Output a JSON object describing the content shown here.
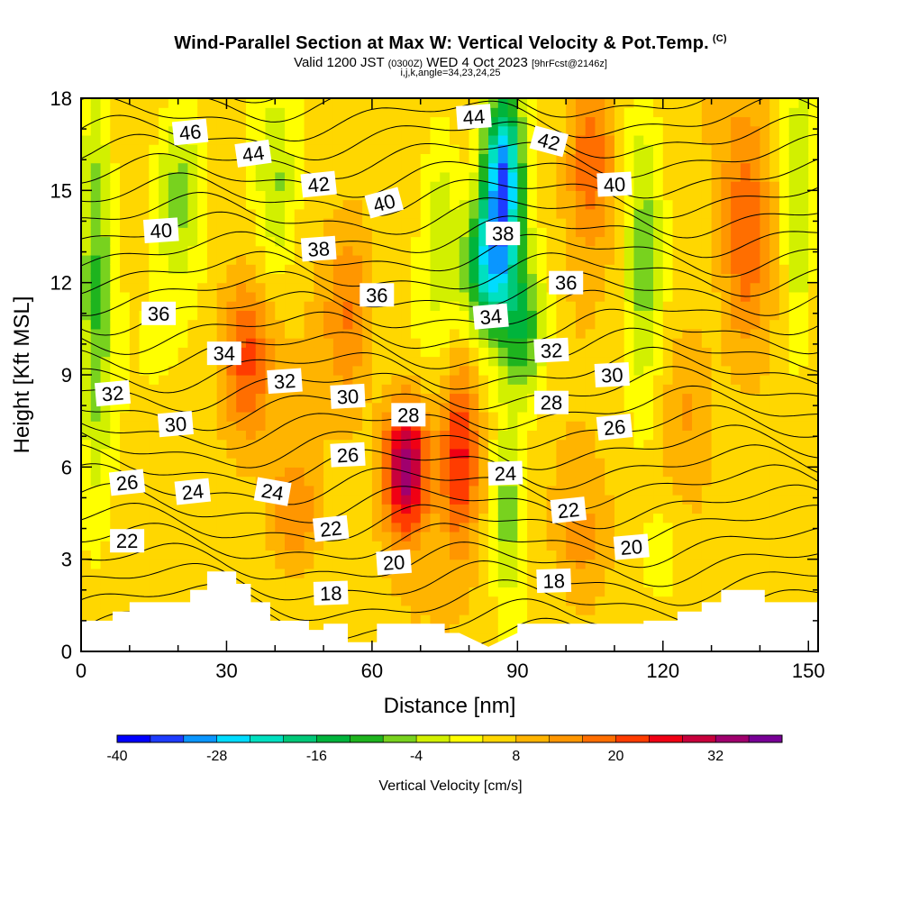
{
  "header": {
    "title": "Wind-Parallel Section at Max W: Vertical Velocity & Pot.Temp.",
    "title_tag": "(C)",
    "valid_prefix": "Valid 1200 JST",
    "valid_utc": "(0300Z)",
    "valid_date": "WED 4 Oct 2023",
    "forecast": "[9hrFcst@2146z]",
    "indices": "i,j,k,angle=34,23,24,25"
  },
  "colors": {
    "background": "#ffffff",
    "terrain": "#ffffff",
    "contour_line": "#000000"
  },
  "chart_data": {
    "type": "heatmap",
    "xlabel": "Distance [nm]",
    "ylabel": "Height [Kft MSL]",
    "xlim": [
      0,
      152
    ],
    "ylim": [
      0,
      18
    ],
    "x_ticks": [
      "0",
      "30",
      "60",
      "90",
      "120",
      "150"
    ],
    "x_tick_values": [
      0,
      30,
      60,
      90,
      120,
      150
    ],
    "y_ticks": [
      "0",
      "3",
      "6",
      "9",
      "12",
      "15",
      "18"
    ],
    "y_tick_values": [
      0,
      3,
      6,
      9,
      12,
      15,
      18
    ],
    "grid": false,
    "colorbar": {
      "label": "Vertical Velocity [cm/s]",
      "min": -40,
      "max": 40,
      "step": 4,
      "tick_labels": [
        "-40",
        "-28",
        "-16",
        "-4",
        "8",
        "20",
        "32"
      ],
      "tick_values": [
        -40,
        -28,
        -16,
        -4,
        8,
        20,
        32
      ],
      "colors": [
        "#0000ff",
        "#1e3cff",
        "#0a96ff",
        "#00dcff",
        "#00e0c0",
        "#00c878",
        "#00b43c",
        "#1eb41e",
        "#78d21e",
        "#d2f000",
        "#ffff00",
        "#ffd700",
        "#ffb400",
        "#ff9600",
        "#ff6e00",
        "#ff3c00",
        "#f00014",
        "#c8003c",
        "#a0006e",
        "#780096"
      ]
    },
    "velocity_features": [
      {
        "x": 87,
        "y": 15.5,
        "sx": 4,
        "sy": 2.8,
        "w": -36
      },
      {
        "x": 84,
        "y": 12.5,
        "sx": 5,
        "sy": 2.2,
        "w": -26
      },
      {
        "x": 91,
        "y": 10.5,
        "sx": 5,
        "sy": 2.5,
        "w": -18
      },
      {
        "x": 88,
        "y": 4.5,
        "sx": 3,
        "sy": 3,
        "w": -12
      },
      {
        "x": 3,
        "y": 12,
        "sx": 3.5,
        "sy": 7,
        "w": -14
      },
      {
        "x": 20,
        "y": 15,
        "sx": 5,
        "sy": 3,
        "w": -12
      },
      {
        "x": 40,
        "y": 15,
        "sx": 4,
        "sy": 3,
        "w": -10
      },
      {
        "x": 116,
        "y": 13,
        "sx": 4,
        "sy": 5,
        "w": -12
      },
      {
        "x": 148,
        "y": 14,
        "sx": 3,
        "sy": 5,
        "w": -10
      },
      {
        "x": 74,
        "y": 14,
        "sx": 4,
        "sy": 4,
        "w": -8
      },
      {
        "x": 120,
        "y": 3,
        "sx": 4,
        "sy": 1.5,
        "w": -6
      },
      {
        "x": 67,
        "y": 6,
        "sx": 4.5,
        "sy": 2.2,
        "w": 30
      },
      {
        "x": 78,
        "y": 6.5,
        "sx": 4,
        "sy": 3,
        "w": 20
      },
      {
        "x": 34,
        "y": 9.5,
        "sx": 5,
        "sy": 2.5,
        "w": 14
      },
      {
        "x": 105,
        "y": 16,
        "sx": 5,
        "sy": 3,
        "w": 14
      },
      {
        "x": 137,
        "y": 13.5,
        "sx": 5,
        "sy": 4,
        "w": 14
      },
      {
        "x": 44,
        "y": 4.5,
        "sx": 5,
        "sy": 2,
        "w": 10
      },
      {
        "x": 55,
        "y": 11,
        "sx": 5,
        "sy": 3,
        "w": 10
      },
      {
        "x": 103,
        "y": 3.5,
        "sx": 6,
        "sy": 2.5,
        "w": 8
      },
      {
        "x": 125,
        "y": 8,
        "sx": 6,
        "sy": 3,
        "w": 8
      }
    ],
    "potential_temperature": {
      "contour_interval": 1,
      "labels": [
        {
          "text": "46",
          "x": 22.5,
          "y": 16.9,
          "angle": -6
        },
        {
          "text": "44",
          "x": 35.5,
          "y": 16.2,
          "angle": -8
        },
        {
          "text": "42",
          "x": 49.0,
          "y": 15.2,
          "angle": -6
        },
        {
          "text": "40",
          "x": 62.5,
          "y": 14.6,
          "angle": -15
        },
        {
          "text": "44",
          "x": 81.0,
          "y": 17.4,
          "angle": -4
        },
        {
          "text": "42",
          "x": 96.5,
          "y": 16.6,
          "angle": 15
        },
        {
          "text": "40",
          "x": 110.0,
          "y": 15.2,
          "angle": -3
        },
        {
          "text": "40",
          "x": 16.5,
          "y": 13.7,
          "angle": -4
        },
        {
          "text": "38",
          "x": 49.0,
          "y": 13.1,
          "angle": -4
        },
        {
          "text": "38",
          "x": 87.0,
          "y": 13.6,
          "angle": 0
        },
        {
          "text": "36",
          "x": 16.0,
          "y": 11.0,
          "angle": 0
        },
        {
          "text": "36",
          "x": 61.0,
          "y": 11.6,
          "angle": 0
        },
        {
          "text": "36",
          "x": 100.0,
          "y": 12.0,
          "angle": 0
        },
        {
          "text": "34",
          "x": 29.5,
          "y": 9.7,
          "angle": 0
        },
        {
          "text": "34",
          "x": 84.5,
          "y": 10.9,
          "angle": -5
        },
        {
          "text": "32",
          "x": 6.5,
          "y": 8.4,
          "angle": -5
        },
        {
          "text": "32",
          "x": 42.0,
          "y": 8.8,
          "angle": -4
        },
        {
          "text": "32",
          "x": 97.0,
          "y": 9.8,
          "angle": -3
        },
        {
          "text": "30",
          "x": 19.5,
          "y": 7.4,
          "angle": -5
        },
        {
          "text": "30",
          "x": 55.0,
          "y": 8.3,
          "angle": -3
        },
        {
          "text": "30",
          "x": 109.5,
          "y": 9.0,
          "angle": -3
        },
        {
          "text": "28",
          "x": 67.5,
          "y": 7.7,
          "angle": 0
        },
        {
          "text": "28",
          "x": 97.0,
          "y": 8.1,
          "angle": 0
        },
        {
          "text": "26",
          "x": 9.5,
          "y": 5.5,
          "angle": -6
        },
        {
          "text": "26",
          "x": 55.0,
          "y": 6.4,
          "angle": -3
        },
        {
          "text": "26",
          "x": 110.0,
          "y": 7.3,
          "angle": -6
        },
        {
          "text": "24",
          "x": 23.0,
          "y": 5.2,
          "angle": -6
        },
        {
          "text": "24",
          "x": 39.5,
          "y": 5.2,
          "angle": 10
        },
        {
          "text": "24",
          "x": 87.5,
          "y": 5.8,
          "angle": -2
        },
        {
          "text": "22",
          "x": 9.5,
          "y": 3.6,
          "angle": 0
        },
        {
          "text": "22",
          "x": 51.5,
          "y": 4.0,
          "angle": -6
        },
        {
          "text": "22",
          "x": 100.5,
          "y": 4.6,
          "angle": -6
        },
        {
          "text": "20",
          "x": 64.5,
          "y": 2.9,
          "angle": -4
        },
        {
          "text": "20",
          "x": 113.5,
          "y": 3.4,
          "angle": -5
        },
        {
          "text": "18",
          "x": 51.5,
          "y": 1.9,
          "angle": -2
        },
        {
          "text": "18",
          "x": 97.5,
          "y": 2.3,
          "angle": -2
        }
      ]
    },
    "terrain_height": [
      {
        "x": 0,
        "h": 1.0
      },
      {
        "x": 6.5,
        "h": 1.0
      },
      {
        "x": 6.5,
        "h": 1.3
      },
      {
        "x": 10,
        "h": 1.3
      },
      {
        "x": 10,
        "h": 1.6
      },
      {
        "x": 22.5,
        "h": 1.6
      },
      {
        "x": 22.5,
        "h": 2.0
      },
      {
        "x": 26,
        "h": 2.0
      },
      {
        "x": 26,
        "h": 2.6
      },
      {
        "x": 32,
        "h": 2.6
      },
      {
        "x": 32,
        "h": 2.2
      },
      {
        "x": 35,
        "h": 2.2
      },
      {
        "x": 35,
        "h": 1.6
      },
      {
        "x": 39,
        "h": 1.6
      },
      {
        "x": 39,
        "h": 1.0
      },
      {
        "x": 47,
        "h": 1.0
      },
      {
        "x": 47,
        "h": 0.7
      },
      {
        "x": 50,
        "h": 0.7
      },
      {
        "x": 50,
        "h": 0.9
      },
      {
        "x": 55,
        "h": 0.9
      },
      {
        "x": 55,
        "h": 0.3
      },
      {
        "x": 61,
        "h": 0.3
      },
      {
        "x": 61,
        "h": 0.9
      },
      {
        "x": 75,
        "h": 0.9
      },
      {
        "x": 75,
        "h": 0.6
      },
      {
        "x": 78,
        "h": 0.6
      },
      {
        "x": 84,
        "h": 0.15
      },
      {
        "x": 90,
        "h": 0.6
      },
      {
        "x": 90,
        "h": 0.9
      },
      {
        "x": 116,
        "h": 0.9
      },
      {
        "x": 116,
        "h": 1.0
      },
      {
        "x": 123,
        "h": 1.0
      },
      {
        "x": 123,
        "h": 1.3
      },
      {
        "x": 128,
        "h": 1.3
      },
      {
        "x": 128,
        "h": 1.6
      },
      {
        "x": 132,
        "h": 1.6
      },
      {
        "x": 132,
        "h": 2.0
      },
      {
        "x": 141,
        "h": 2.0
      },
      {
        "x": 141,
        "h": 1.6
      },
      {
        "x": 145,
        "h": 1.6
      },
      {
        "x": 145,
        "h": 1.6
      },
      {
        "x": 152,
        "h": 1.6
      }
    ]
  }
}
